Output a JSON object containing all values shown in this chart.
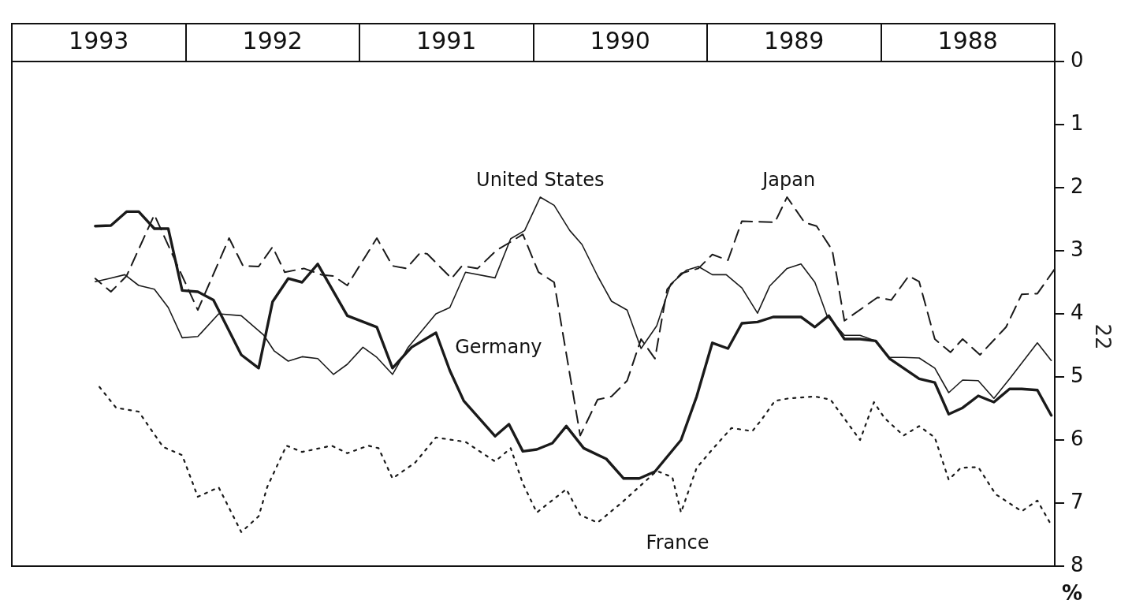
{
  "chart_data": {
    "type": "line",
    "ylabel": "%",
    "xlim": [
      1994,
      1988
    ],
    "ylim": [
      8,
      0
    ],
    "xticks": [
      {
        "value": 1988.5,
        "label": "1988"
      },
      {
        "value": 1989.5,
        "label": "1989"
      },
      {
        "value": 1990.5,
        "label": "1990"
      },
      {
        "value": 1991.5,
        "label": "1991"
      },
      {
        "value": 1992.5,
        "label": "1992"
      },
      {
        "value": 1993.5,
        "label": "1993"
      }
    ],
    "yticks": [
      0,
      1,
      2,
      3,
      4,
      5,
      6,
      7,
      8
    ],
    "grid": false,
    "legend": false,
    "marker": "none",
    "annotations": [
      "22"
    ],
    "series": [
      {
        "name": "Japan",
        "color": "#1a1a1a",
        "line_style": "dashed",
        "x": [
          1988.0,
          1988.1,
          1988.19,
          1988.28,
          1988.43,
          1988.53,
          1988.6,
          1988.69,
          1988.78,
          1988.84,
          1988.94,
          1989.02,
          1989.21,
          1989.28,
          1989.37,
          1989.44,
          1989.54,
          1989.61,
          1989.8,
          1989.88,
          1989.97,
          1990.05,
          1990.15,
          1990.23,
          1990.3,
          1990.38,
          1990.46,
          1990.55,
          1990.63,
          1990.73,
          1990.88,
          1990.97,
          1991.06,
          1991.13,
          1991.21,
          1991.32,
          1991.41,
          1991.47,
          1991.61,
          1991.65,
          1991.73,
          1991.81,
          1991.9,
          1992.07,
          1992.15,
          1992.22,
          1992.32,
          1992.43,
          1992.5,
          1992.58,
          1992.67,
          1992.75,
          1992.93,
          1993.02,
          1993.18,
          1993.34,
          1993.43,
          1993.52
        ],
        "values": [
          3.29,
          3.68,
          3.69,
          4.21,
          4.65,
          4.4,
          4.61,
          4.4,
          3.49,
          3.4,
          3.78,
          3.74,
          4.11,
          2.99,
          2.61,
          2.55,
          2.15,
          2.55,
          2.53,
          3.15,
          3.06,
          3.28,
          3.36,
          3.61,
          4.71,
          4.4,
          5.06,
          5.31,
          5.36,
          5.93,
          3.5,
          3.34,
          2.74,
          2.86,
          2.99,
          3.28,
          3.24,
          3.44,
          3.05,
          3.03,
          3.28,
          3.24,
          2.8,
          3.55,
          3.4,
          3.38,
          3.28,
          3.34,
          2.94,
          3.25,
          3.24,
          2.8,
          3.94,
          3.4,
          2.43,
          3.4,
          3.65,
          3.44
        ]
      },
      {
        "name": "United States",
        "color": "#1a1a1a",
        "line_style": "solid",
        "x": [
          1988.02,
          1988.1,
          1988.19,
          1988.26,
          1988.35,
          1988.44,
          1988.53,
          1988.61,
          1988.69,
          1988.78,
          1988.87,
          1988.95,
          1989.03,
          1989.12,
          1989.21,
          1989.31,
          1989.38,
          1989.46,
          1989.54,
          1989.64,
          1989.71,
          1989.8,
          1989.89,
          1989.97,
          1990.05,
          1990.12,
          1990.21,
          1990.29,
          1990.38,
          1990.46,
          1990.55,
          1990.63,
          1990.72,
          1990.79,
          1990.88,
          1990.96,
          1991.05,
          1991.13,
          1991.22,
          1991.39,
          1991.48,
          1991.56,
          1991.72,
          1991.81,
          1991.9,
          1991.98,
          1992.07,
          1992.15,
          1992.24,
          1992.33,
          1992.41,
          1992.49,
          1992.55,
          1992.68,
          1992.81,
          1992.93,
          1993.02,
          1993.1,
          1993.18,
          1993.27,
          1993.35,
          1993.44,
          1993.52
        ],
        "values": [
          4.74,
          4.46,
          4.78,
          5.03,
          5.34,
          5.06,
          5.05,
          5.25,
          4.86,
          4.7,
          4.69,
          4.69,
          4.43,
          4.34,
          4.34,
          4.03,
          3.5,
          3.21,
          3.28,
          3.56,
          3.99,
          3.59,
          3.38,
          3.38,
          3.25,
          3.31,
          3.53,
          4.19,
          4.55,
          3.94,
          3.8,
          3.4,
          2.9,
          2.68,
          2.28,
          2.15,
          2.68,
          2.81,
          3.43,
          3.34,
          3.9,
          4.0,
          4.53,
          4.96,
          4.69,
          4.53,
          4.8,
          4.96,
          4.71,
          4.68,
          4.75,
          4.59,
          4.34,
          4.03,
          4.0,
          4.36,
          4.38,
          3.9,
          3.61,
          3.55,
          3.38,
          3.44,
          3.49
        ]
      },
      {
        "name": "Germany",
        "color": "#1a1a1a",
        "line_style": "solid",
        "x": [
          1988.02,
          1988.1,
          1988.19,
          1988.26,
          1988.35,
          1988.44,
          1988.53,
          1988.61,
          1988.69,
          1988.78,
          1988.87,
          1988.95,
          1989.03,
          1989.12,
          1989.21,
          1989.3,
          1989.38,
          1989.46,
          1989.62,
          1989.71,
          1989.8,
          1989.88,
          1989.97,
          1990.06,
          1990.15,
          1990.3,
          1990.39,
          1990.48,
          1990.58,
          1990.71,
          1990.81,
          1990.89,
          1990.98,
          1991.06,
          1991.14,
          1991.22,
          1991.4,
          1991.48,
          1991.56,
          1991.7,
          1991.81,
          1991.9,
          1992.07,
          1992.24,
          1992.33,
          1992.41,
          1992.5,
          1992.58,
          1992.68,
          1992.84,
          1992.93,
          1993.02,
          1993.1,
          1993.18,
          1993.27,
          1993.34,
          1993.43,
          1993.52
        ],
        "values": [
          5.61,
          5.21,
          5.19,
          5.19,
          5.4,
          5.3,
          5.49,
          5.59,
          5.09,
          5.03,
          4.86,
          4.71,
          4.43,
          4.4,
          4.4,
          4.03,
          4.21,
          4.05,
          4.05,
          4.13,
          4.15,
          4.55,
          4.46,
          5.31,
          6.0,
          6.5,
          6.61,
          6.61,
          6.3,
          6.13,
          5.78,
          6.05,
          6.15,
          6.18,
          5.75,
          5.94,
          5.38,
          4.9,
          4.3,
          4.53,
          4.86,
          4.21,
          4.03,
          3.21,
          3.5,
          3.44,
          3.81,
          4.86,
          4.65,
          3.78,
          3.65,
          3.63,
          2.65,
          2.65,
          2.38,
          2.38,
          2.6,
          2.61
        ]
      },
      {
        "name": "France",
        "color": "#1a1a1a",
        "line_style": "dotted",
        "x": [
          1988.03,
          1988.1,
          1988.19,
          1988.34,
          1988.44,
          1988.54,
          1988.61,
          1988.69,
          1988.78,
          1988.87,
          1988.98,
          1989.04,
          1989.12,
          1989.29,
          1989.38,
          1989.53,
          1989.61,
          1989.69,
          1989.74,
          1989.86,
          1989.97,
          1990.06,
          1990.15,
          1990.2,
          1990.29,
          1990.39,
          1990.49,
          1990.63,
          1990.73,
          1990.81,
          1990.98,
          1991.06,
          1991.13,
          1991.22,
          1991.39,
          1991.56,
          1991.68,
          1991.81,
          1991.89,
          1991.95,
          1992.07,
          1992.16,
          1992.33,
          1992.42,
          1992.53,
          1992.58,
          1992.68,
          1992.81,
          1992.93,
          1993.02,
          1993.13,
          1993.27,
          1993.4,
          1993.51
        ],
        "values": [
          7.3,
          6.96,
          7.13,
          6.86,
          6.43,
          6.44,
          6.63,
          5.96,
          5.78,
          5.93,
          5.65,
          5.4,
          6.0,
          5.36,
          5.31,
          5.34,
          5.38,
          5.69,
          5.86,
          5.81,
          6.15,
          6.44,
          7.15,
          6.59,
          6.49,
          6.74,
          6.99,
          7.31,
          7.19,
          6.78,
          7.15,
          6.69,
          6.13,
          6.34,
          6.03,
          5.96,
          6.36,
          6.61,
          6.13,
          6.09,
          6.21,
          6.09,
          6.19,
          6.09,
          6.74,
          7.21,
          7.46,
          6.75,
          6.9,
          6.24,
          6.11,
          5.55,
          5.49,
          5.11
        ]
      }
    ]
  }
}
